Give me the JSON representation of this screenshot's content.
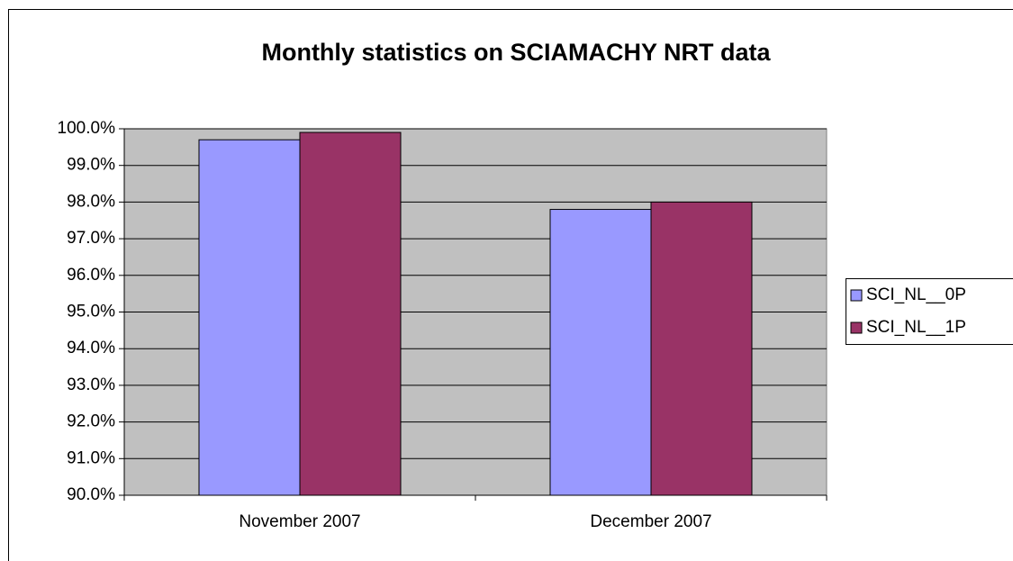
{
  "chart_data": {
    "type": "bar",
    "title": "Monthly statistics on SCIAMACHY NRT data",
    "categories": [
      "November 2007",
      "December 2007"
    ],
    "series": [
      {
        "name": "SCI_NL__0P",
        "color": "#9999ff",
        "values": [
          99.7,
          97.8
        ]
      },
      {
        "name": "SCI_NL__1P",
        "color": "#993366",
        "values": [
          99.9,
          98.0
        ]
      }
    ],
    "ylim": [
      90,
      100
    ],
    "yticks": [
      {
        "value": 90,
        "label": "90.0%"
      },
      {
        "value": 91,
        "label": "91.0%"
      },
      {
        "value": 92,
        "label": "92.0%"
      },
      {
        "value": 93,
        "label": "93.0%"
      },
      {
        "value": 94,
        "label": "94.0%"
      },
      {
        "value": 95,
        "label": "95.0%"
      },
      {
        "value": 96,
        "label": "96.0%"
      },
      {
        "value": 97,
        "label": "97.0%"
      },
      {
        "value": 98,
        "label": "98.0%"
      },
      {
        "value": 99,
        "label": "99.0%"
      },
      {
        "value": 100,
        "label": "100.0%"
      }
    ],
    "grid": true,
    "legend": "right",
    "plot_background": "#c0c0c0"
  }
}
